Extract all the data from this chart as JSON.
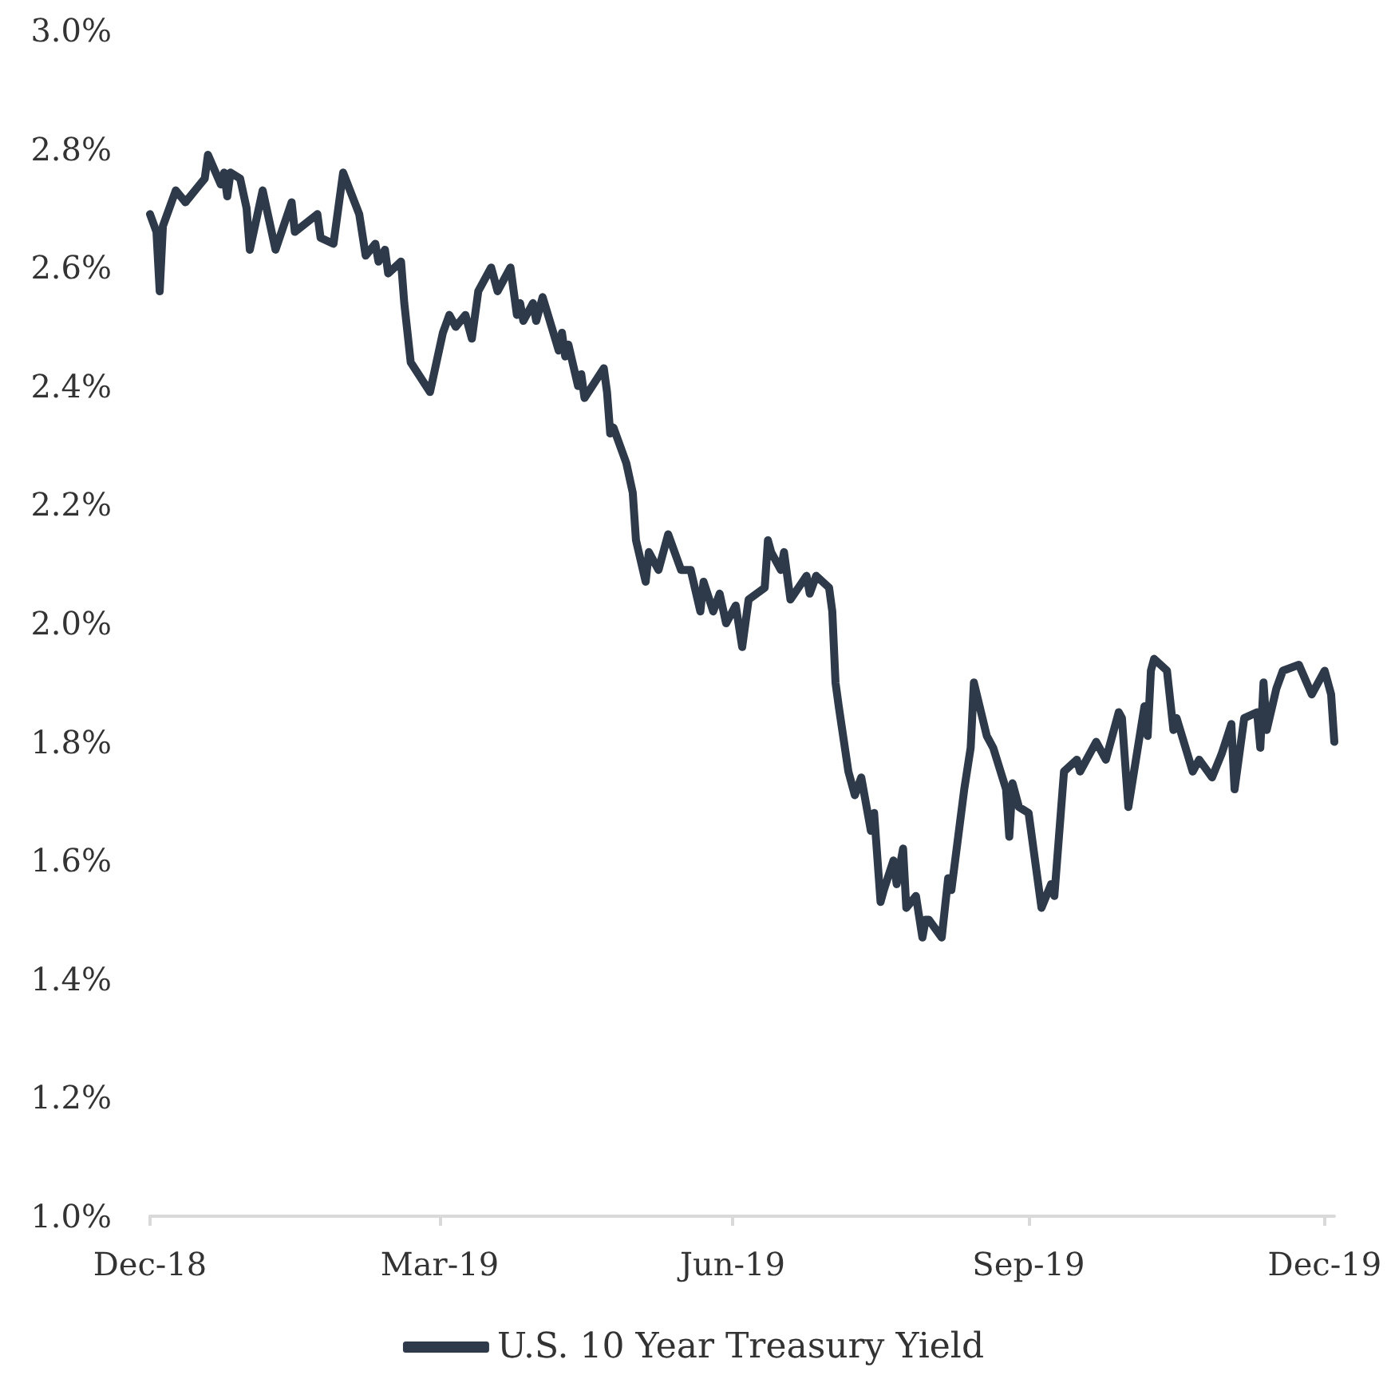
{
  "chart_data": {
    "type": "line",
    "x": [
      "2018-12-31",
      "2019-01-02",
      "2019-01-03",
      "2019-01-04",
      "2019-01-08",
      "2019-01-11",
      "2019-01-17",
      "2019-01-18",
      "2019-01-22",
      "2019-01-23",
      "2019-01-24",
      "2019-01-25",
      "2019-01-28",
      "2019-01-30",
      "2019-01-31",
      "2019-02-04",
      "2019-02-08",
      "2019-02-13",
      "2019-02-14",
      "2019-02-21",
      "2019-02-22",
      "2019-02-26",
      "2019-03-01",
      "2019-03-06",
      "2019-03-08",
      "2019-03-11",
      "2019-03-12",
      "2019-03-14",
      "2019-03-15",
      "2019-03-19",
      "2019-03-20",
      "2019-03-22",
      "2019-03-28",
      "2019-04-01",
      "2019-04-03",
      "2019-04-05",
      "2019-04-08",
      "2019-04-10",
      "2019-04-12",
      "2019-04-16",
      "2019-04-18",
      "2019-04-22",
      "2019-04-24",
      "2019-04-25",
      "2019-04-26",
      "2019-04-29",
      "2019-04-30",
      "2019-05-02",
      "2019-05-07",
      "2019-05-08",
      "2019-05-09",
      "2019-05-10",
      "2019-05-13",
      "2019-05-14",
      "2019-05-15",
      "2019-05-21",
      "2019-05-22",
      "2019-05-23",
      "2019-05-24",
      "2019-05-28",
      "2019-05-30",
      "2019-05-31",
      "2019-06-03",
      "2019-06-04",
      "2019-06-07",
      "2019-06-10",
      "2019-06-14",
      "2019-06-17",
      "2019-06-20",
      "2019-06-21",
      "2019-06-24",
      "2019-06-26",
      "2019-06-28",
      "2019-07-01",
      "2019-07-03",
      "2019-07-05",
      "2019-07-10",
      "2019-07-11",
      "2019-07-12",
      "2019-07-15",
      "2019-07-16",
      "2019-07-18",
      "2019-07-23",
      "2019-07-24",
      "2019-07-26",
      "2019-07-30",
      "2019-07-31",
      "2019-08-01",
      "2019-08-02",
      "2019-08-05",
      "2019-08-07",
      "2019-08-09",
      "2019-08-12",
      "2019-08-13",
      "2019-08-15",
      "2019-08-16",
      "2019-08-19",
      "2019-08-20",
      "2019-08-22",
      "2019-08-23",
      "2019-08-26",
      "2019-08-28",
      "2019-08-29",
      "2019-08-30",
      "2019-09-03",
      "2019-09-05",
      "2019-09-06",
      "2019-09-10",
      "2019-09-12",
      "2019-09-13",
      "2019-09-17",
      "2019-09-19",
      "2019-09-23",
      "2019-09-24",
      "2019-09-25",
      "2019-09-27",
      "2019-09-30",
      "2019-10-02",
      "2019-10-04",
      "2019-10-07",
      "2019-10-08",
      "2019-10-11",
      "2019-10-15",
      "2019-10-16",
      "2019-10-21",
      "2019-10-24",
      "2019-10-28",
      "2019-10-29",
      "2019-10-31",
      "2019-11-05",
      "2019-11-06",
      "2019-11-07",
      "2019-11-08",
      "2019-11-12",
      "2019-11-14",
      "2019-11-15",
      "2019-11-20",
      "2019-11-22",
      "2019-11-26",
      "2019-11-29",
      "2019-12-02",
      "2019-12-03",
      "2019-12-06",
      "2019-12-10",
      "2019-12-11",
      "2019-12-12",
      "2019-12-13",
      "2019-12-16",
      "2019-12-18",
      "2019-12-23",
      "2019-12-27",
      "2019-12-31",
      "2020-01-02",
      "2020-01-03"
    ],
    "series": [
      {
        "name": "U.S. 10 Year Treasury Yield",
        "color": "#2e3a4a",
        "values": [
          2.69,
          2.66,
          2.56,
          2.67,
          2.73,
          2.71,
          2.75,
          2.79,
          2.74,
          2.76,
          2.72,
          2.76,
          2.75,
          2.7,
          2.63,
          2.73,
          2.63,
          2.71,
          2.66,
          2.69,
          2.65,
          2.64,
          2.76,
          2.69,
          2.62,
          2.64,
          2.61,
          2.63,
          2.59,
          2.61,
          2.54,
          2.44,
          2.39,
          2.49,
          2.52,
          2.5,
          2.52,
          2.48,
          2.56,
          2.6,
          2.56,
          2.6,
          2.52,
          2.54,
          2.51,
          2.54,
          2.51,
          2.55,
          2.46,
          2.49,
          2.45,
          2.47,
          2.4,
          2.42,
          2.38,
          2.43,
          2.39,
          2.32,
          2.33,
          2.27,
          2.22,
          2.14,
          2.07,
          2.12,
          2.09,
          2.15,
          2.09,
          2.09,
          2.02,
          2.07,
          2.02,
          2.05,
          2.0,
          2.03,
          1.96,
          2.04,
          2.06,
          2.14,
          2.12,
          2.09,
          2.12,
          2.04,
          2.08,
          2.05,
          2.08,
          2.06,
          2.02,
          1.9,
          1.86,
          1.75,
          1.71,
          1.74,
          1.65,
          1.68,
          1.53,
          1.55,
          1.6,
          1.56,
          1.62,
          1.52,
          1.54,
          1.47,
          1.5,
          1.5,
          1.47,
          1.57,
          1.55,
          1.72,
          1.79,
          1.9,
          1.81,
          1.79,
          1.72,
          1.64,
          1.73,
          1.69,
          1.68,
          1.6,
          1.52,
          1.56,
          1.54,
          1.75,
          1.77,
          1.75,
          1.8,
          1.77,
          1.85,
          1.84,
          1.69,
          1.86,
          1.81,
          1.92,
          1.94,
          1.92,
          1.82,
          1.84,
          1.75,
          1.77,
          1.74,
          1.78,
          1.83,
          1.72,
          1.84,
          1.85,
          1.79,
          1.9,
          1.82,
          1.89,
          1.92,
          1.93,
          1.88,
          1.92,
          1.88,
          1.8
        ]
      }
    ],
    "xlim": [
      "2018-12-31",
      "2020-01-03"
    ],
    "xticks": [
      {
        "value": "2018-12-31",
        "label": "Dec-18"
      },
      {
        "value": "2019-03-31",
        "label": "Mar-19"
      },
      {
        "value": "2019-06-30",
        "label": "Jun-19"
      },
      {
        "value": "2019-09-30",
        "label": "Sep-19"
      },
      {
        "value": "2019-12-31",
        "label": "Dec-19"
      }
    ],
    "ylim": [
      1.0,
      3.0
    ],
    "yticks": [
      {
        "value": 1.0,
        "label": "1.0%"
      },
      {
        "value": 1.2,
        "label": "1.2%"
      },
      {
        "value": 1.4,
        "label": "1.4%"
      },
      {
        "value": 1.6,
        "label": "1.6%"
      },
      {
        "value": 1.8,
        "label": "1.8%"
      },
      {
        "value": 2.0,
        "label": "2.0%"
      },
      {
        "value": 2.2,
        "label": "2.2%"
      },
      {
        "value": 2.4,
        "label": "2.4%"
      },
      {
        "value": 2.6,
        "label": "2.6%"
      },
      {
        "value": 2.8,
        "label": "2.8%"
      },
      {
        "value": 3.0,
        "label": "3.0%"
      }
    ],
    "grid": false,
    "legend": "bottom",
    "marker": "none",
    "line_style": "solid"
  }
}
